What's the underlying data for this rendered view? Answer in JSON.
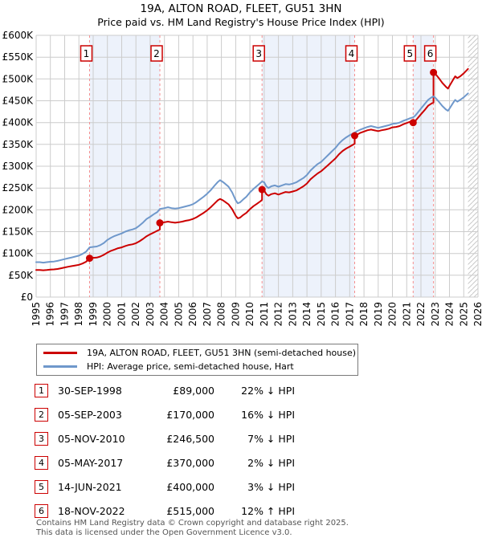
{
  "chart_data": {
    "type": "line",
    "title": "19A, ALTON ROAD, FLEET, GU51 3HN",
    "subtitle": "Price paid vs. HM Land Registry's House Price Index (HPI)",
    "axes": {
      "x_min": 1995,
      "x_max": 2026,
      "x_ticks": [
        1995,
        1996,
        1997,
        1998,
        1999,
        2000,
        2001,
        2002,
        2003,
        2004,
        2005,
        2006,
        2007,
        2008,
        2009,
        2010,
        2011,
        2012,
        2013,
        2014,
        2015,
        2016,
        2017,
        2018,
        2019,
        2020,
        2021,
        2022,
        2023,
        2024,
        2025,
        2026
      ],
      "y_min": 0,
      "y_max": 600,
      "y_unit": "GBP thousands",
      "y_ticks": [
        0,
        50,
        100,
        150,
        200,
        250,
        300,
        350,
        400,
        450,
        500,
        550,
        600
      ],
      "y_tick_labels": [
        "£0",
        "£50K",
        "£100K",
        "£150K",
        "£200K",
        "£250K",
        "£300K",
        "£350K",
        "£400K",
        "£450K",
        "£500K",
        "£550K",
        "£600K"
      ]
    },
    "grid": true,
    "colors": {
      "price": "#cc0000",
      "hpi": "#6f98cb",
      "band": "#edf2fb",
      "sale_line": "#f58f8f",
      "grid": "#cccccc",
      "hatch": "#c9c9c9",
      "marker_box_border": "#cc0000"
    },
    "legend": [
      {
        "label": "19A, ALTON ROAD, FLEET, GU51 3HN (semi-detached house)",
        "color": "#cc0000"
      },
      {
        "label": "HPI: Average price, semi-detached house, Hart",
        "color": "#6f98cb"
      }
    ],
    "series": [
      {
        "name": "19A, ALTON ROAD, FLEET, GU51 3HN (semi-detached house)",
        "color": "#cc0000",
        "points": [
          [
            1995.0,
            62
          ],
          [
            1995.25,
            62
          ],
          [
            1995.5,
            61.5
          ],
          [
            1995.75,
            62
          ],
          [
            1996.0,
            63
          ],
          [
            1996.25,
            63.5
          ],
          [
            1996.5,
            64.5
          ],
          [
            1996.75,
            66
          ],
          [
            1997.0,
            68
          ],
          [
            1997.25,
            69.5
          ],
          [
            1997.5,
            71
          ],
          [
            1997.75,
            72.5
          ],
          [
            1998.0,
            74
          ],
          [
            1998.25,
            77
          ],
          [
            1998.5,
            81
          ],
          [
            1998.75,
            89
          ],
          [
            1999.0,
            90
          ],
          [
            1999.25,
            90.5
          ],
          [
            1999.5,
            93
          ],
          [
            1999.75,
            97
          ],
          [
            2000.0,
            102
          ],
          [
            2000.25,
            106
          ],
          [
            2000.5,
            109
          ],
          [
            2000.75,
            112
          ],
          [
            2001.0,
            114
          ],
          [
            2001.25,
            117
          ],
          [
            2001.5,
            119.5
          ],
          [
            2001.75,
            121
          ],
          [
            2002.0,
            123.5
          ],
          [
            2002.25,
            128
          ],
          [
            2002.5,
            133.5
          ],
          [
            2002.75,
            139.5
          ],
          [
            2003.0,
            144
          ],
          [
            2003.25,
            148
          ],
          [
            2003.5,
            152
          ],
          [
            2003.68,
            155
          ],
          [
            2003.68,
            170
          ],
          [
            2004.0,
            171.5
          ],
          [
            2004.25,
            173
          ],
          [
            2004.5,
            171.5
          ],
          [
            2004.75,
            170.5
          ],
          [
            2005.0,
            171.5
          ],
          [
            2005.25,
            173
          ],
          [
            2005.5,
            175
          ],
          [
            2005.75,
            176.5
          ],
          [
            2006.0,
            179
          ],
          [
            2006.25,
            183
          ],
          [
            2006.5,
            188
          ],
          [
            2006.75,
            193
          ],
          [
            2007.0,
            199
          ],
          [
            2007.25,
            206
          ],
          [
            2007.5,
            214
          ],
          [
            2007.75,
            222
          ],
          [
            2007.9,
            225
          ],
          [
            2008.1,
            222
          ],
          [
            2008.25,
            218.5
          ],
          [
            2008.5,
            212.5
          ],
          [
            2008.75,
            201.5
          ],
          [
            2009.0,
            186.5
          ],
          [
            2009.15,
            180.5
          ],
          [
            2009.3,
            182
          ],
          [
            2009.5,
            187.5
          ],
          [
            2009.75,
            193
          ],
          [
            2010.0,
            201.5
          ],
          [
            2010.25,
            208.5
          ],
          [
            2010.5,
            214
          ],
          [
            2010.75,
            220
          ],
          [
            2010.85,
            223
          ],
          [
            2010.85,
            246.5
          ],
          [
            2011.0,
            244.5
          ],
          [
            2011.15,
            236
          ],
          [
            2011.3,
            232.5
          ],
          [
            2011.5,
            236
          ],
          [
            2011.75,
            238
          ],
          [
            2012.0,
            235
          ],
          [
            2012.25,
            238
          ],
          [
            2012.5,
            241
          ],
          [
            2012.75,
            240
          ],
          [
            2013.0,
            242
          ],
          [
            2013.25,
            244.5
          ],
          [
            2013.5,
            249
          ],
          [
            2013.75,
            254
          ],
          [
            2014.0,
            260.5
          ],
          [
            2014.25,
            270
          ],
          [
            2014.5,
            277
          ],
          [
            2014.75,
            283.5
          ],
          [
            2015.0,
            288.5
          ],
          [
            2015.25,
            296
          ],
          [
            2015.5,
            303
          ],
          [
            2015.75,
            310.5
          ],
          [
            2016.0,
            318
          ],
          [
            2016.25,
            327.5
          ],
          [
            2016.5,
            335
          ],
          [
            2016.75,
            340.5
          ],
          [
            2017.0,
            345
          ],
          [
            2017.35,
            351.5
          ],
          [
            2017.35,
            370
          ],
          [
            2017.5,
            372
          ],
          [
            2017.75,
            376.5
          ],
          [
            2018.0,
            379.5
          ],
          [
            2018.25,
            382.5
          ],
          [
            2018.5,
            384
          ],
          [
            2018.75,
            382
          ],
          [
            2019.0,
            380.5
          ],
          [
            2019.25,
            382.5
          ],
          [
            2019.5,
            384
          ],
          [
            2019.75,
            386
          ],
          [
            2020.0,
            389
          ],
          [
            2020.25,
            390
          ],
          [
            2020.5,
            392
          ],
          [
            2020.75,
            396
          ],
          [
            2021.0,
            399
          ],
          [
            2021.25,
            402
          ],
          [
            2021.45,
            400
          ],
          [
            2021.6,
            403.5
          ],
          [
            2021.75,
            409.5
          ],
          [
            2022.0,
            419
          ],
          [
            2022.25,
            428.5
          ],
          [
            2022.5,
            438.5
          ],
          [
            2022.75,
            444
          ],
          [
            2022.88,
            446
          ],
          [
            2022.88,
            515
          ],
          [
            2023.0,
            512
          ],
          [
            2023.25,
            502
          ],
          [
            2023.5,
            491
          ],
          [
            2023.75,
            482
          ],
          [
            2023.9,
            478
          ],
          [
            2024.0,
            484
          ],
          [
            2024.25,
            498
          ],
          [
            2024.4,
            506
          ],
          [
            2024.55,
            502
          ],
          [
            2024.75,
            506
          ],
          [
            2025.0,
            513
          ],
          [
            2025.3,
            523
          ]
        ]
      },
      {
        "name": "HPI: Average price, semi-detached house, Hart",
        "color": "#6f98cb",
        "points": [
          [
            1995.0,
            80
          ],
          [
            1995.25,
            80
          ],
          [
            1995.5,
            79
          ],
          [
            1995.75,
            80
          ],
          [
            1996.0,
            81
          ],
          [
            1996.25,
            81.5
          ],
          [
            1996.5,
            83
          ],
          [
            1996.75,
            85
          ],
          [
            1997.0,
            87
          ],
          [
            1997.25,
            89
          ],
          [
            1997.5,
            91
          ],
          [
            1997.75,
            93
          ],
          [
            1998.0,
            95
          ],
          [
            1998.25,
            99
          ],
          [
            1998.5,
            104
          ],
          [
            1998.75,
            114
          ],
          [
            1999.0,
            115
          ],
          [
            1999.25,
            116
          ],
          [
            1999.5,
            119
          ],
          [
            1999.75,
            124
          ],
          [
            2000.0,
            131
          ],
          [
            2000.25,
            136
          ],
          [
            2000.5,
            140
          ],
          [
            2000.75,
            143
          ],
          [
            2001.0,
            146
          ],
          [
            2001.25,
            150
          ],
          [
            2001.5,
            153
          ],
          [
            2001.75,
            155
          ],
          [
            2002.0,
            158
          ],
          [
            2002.25,
            164
          ],
          [
            2002.5,
            171
          ],
          [
            2002.75,
            179
          ],
          [
            2003.0,
            184
          ],
          [
            2003.25,
            190
          ],
          [
            2003.5,
            195
          ],
          [
            2003.68,
            202
          ],
          [
            2004.0,
            204
          ],
          [
            2004.25,
            206
          ],
          [
            2004.5,
            204
          ],
          [
            2004.75,
            203
          ],
          [
            2005.0,
            204
          ],
          [
            2005.25,
            206
          ],
          [
            2005.5,
            208
          ],
          [
            2005.75,
            210
          ],
          [
            2006.0,
            213
          ],
          [
            2006.25,
            218
          ],
          [
            2006.5,
            224
          ],
          [
            2006.75,
            230
          ],
          [
            2007.0,
            237
          ],
          [
            2007.25,
            245
          ],
          [
            2007.5,
            255
          ],
          [
            2007.75,
            264
          ],
          [
            2007.9,
            268
          ],
          [
            2008.1,
            264
          ],
          [
            2008.25,
            260
          ],
          [
            2008.5,
            253
          ],
          [
            2008.75,
            240
          ],
          [
            2009.0,
            222
          ],
          [
            2009.15,
            215
          ],
          [
            2009.3,
            217
          ],
          [
            2009.5,
            223
          ],
          [
            2009.75,
            230
          ],
          [
            2010.0,
            240
          ],
          [
            2010.25,
            248
          ],
          [
            2010.5,
            255
          ],
          [
            2010.75,
            262
          ],
          [
            2010.85,
            265
          ],
          [
            2011.0,
            263
          ],
          [
            2011.15,
            254
          ],
          [
            2011.3,
            250
          ],
          [
            2011.5,
            254
          ],
          [
            2011.75,
            256
          ],
          [
            2012.0,
            253
          ],
          [
            2012.25,
            256
          ],
          [
            2012.5,
            259
          ],
          [
            2012.75,
            258
          ],
          [
            2013.0,
            260
          ],
          [
            2013.25,
            263
          ],
          [
            2013.5,
            268
          ],
          [
            2013.75,
            273
          ],
          [
            2014.0,
            280
          ],
          [
            2014.25,
            290
          ],
          [
            2014.5,
            298
          ],
          [
            2014.75,
            305
          ],
          [
            2015.0,
            310
          ],
          [
            2015.25,
            318
          ],
          [
            2015.5,
            326
          ],
          [
            2015.75,
            334
          ],
          [
            2016.0,
            342
          ],
          [
            2016.25,
            352
          ],
          [
            2016.5,
            360
          ],
          [
            2016.75,
            366
          ],
          [
            2017.0,
            371
          ],
          [
            2017.35,
            377
          ],
          [
            2017.5,
            380
          ],
          [
            2017.75,
            384
          ],
          [
            2018.0,
            387
          ],
          [
            2018.25,
            390
          ],
          [
            2018.5,
            392
          ],
          [
            2018.75,
            390
          ],
          [
            2019.0,
            388
          ],
          [
            2019.25,
            390
          ],
          [
            2019.5,
            392
          ],
          [
            2019.75,
            394
          ],
          [
            2020.0,
            397
          ],
          [
            2020.25,
            398
          ],
          [
            2020.5,
            400
          ],
          [
            2020.75,
            404
          ],
          [
            2021.0,
            407
          ],
          [
            2021.25,
            410
          ],
          [
            2021.45,
            412
          ],
          [
            2021.6,
            416
          ],
          [
            2021.75,
            422
          ],
          [
            2022.0,
            432
          ],
          [
            2022.25,
            442
          ],
          [
            2022.5,
            452
          ],
          [
            2022.75,
            458
          ],
          [
            2022.88,
            460
          ],
          [
            2023.0,
            457
          ],
          [
            2023.25,
            448
          ],
          [
            2023.5,
            438
          ],
          [
            2023.75,
            430
          ],
          [
            2023.9,
            427
          ],
          [
            2024.0,
            432
          ],
          [
            2024.25,
            445
          ],
          [
            2024.4,
            452
          ],
          [
            2024.55,
            448
          ],
          [
            2024.75,
            452
          ],
          [
            2025.0,
            458
          ],
          [
            2025.3,
            467
          ]
        ]
      }
    ],
    "sales": [
      {
        "n": "1",
        "year": 1998.75,
        "price_k": 89
      },
      {
        "n": "2",
        "year": 2003.68,
        "price_k": 170
      },
      {
        "n": "3",
        "year": 2010.85,
        "price_k": 246.5
      },
      {
        "n": "4",
        "year": 2017.35,
        "price_k": 370
      },
      {
        "n": "5",
        "year": 2021.45,
        "price_k": 400
      },
      {
        "n": "6",
        "year": 2022.88,
        "price_k": 515
      }
    ],
    "shaded_bands": [
      [
        1998.75,
        2003.68
      ],
      [
        2010.85,
        2017.35
      ],
      [
        2021.45,
        2022.88
      ]
    ],
    "future_region": [
      2025.3,
      2026
    ]
  },
  "transactions": [
    {
      "n": "1",
      "date": "30-SEP-1998",
      "price": "£89,000",
      "hpi": "22% ↓ HPI"
    },
    {
      "n": "2",
      "date": "05-SEP-2003",
      "price": "£170,000",
      "hpi": "16% ↓ HPI"
    },
    {
      "n": "3",
      "date": "05-NOV-2010",
      "price": "£246,500",
      "hpi": "7% ↓ HPI"
    },
    {
      "n": "4",
      "date": "05-MAY-2017",
      "price": "£370,000",
      "hpi": "2% ↓ HPI"
    },
    {
      "n": "5",
      "date": "14-JUN-2021",
      "price": "£400,000",
      "hpi": "3% ↓ HPI"
    },
    {
      "n": "6",
      "date": "18-NOV-2022",
      "price": "£515,000",
      "hpi": "12% ↑ HPI"
    }
  ],
  "footer": {
    "line1": "Contains HM Land Registry data © Crown copyright and database right 2025.",
    "line2": "This data is licensed under the Open Government Licence v3.0."
  }
}
